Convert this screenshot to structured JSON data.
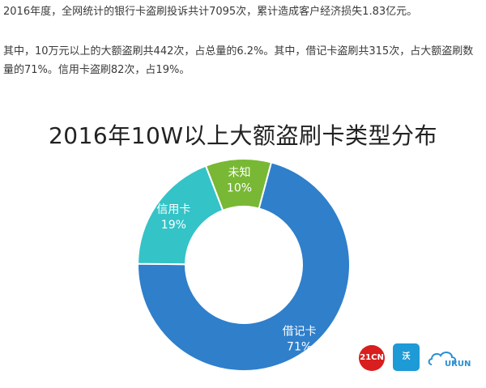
{
  "paragraphs": [
    "2016年度，全网统计的银行卡盗刷投诉共计7095次，累计造成客户经济损失1.83亿元。",
    "其中，10万元以上的大额盗刷共442次，占总量的6.2%。其中，借记卡盗刷共315次，占大额盗刷数量的71%。信用卡盗刷82次，占19%。"
  ],
  "chart_data": {
    "type": "pie",
    "title": "2016年10W以上大额盗刷卡类型分布",
    "donut": true,
    "slices": [
      {
        "label": "借记卡",
        "value": 71,
        "value_label": "71%",
        "color": "#2f7fcb"
      },
      {
        "label": "信用卡",
        "value": 19,
        "value_label": "19%",
        "color": "#34c3c7"
      },
      {
        "label": "未知",
        "value": 10,
        "value_label": "10%",
        "color": "#78b834"
      }
    ]
  },
  "logos": {
    "first": "21CN",
    "second": "沃",
    "third": "URUN"
  }
}
